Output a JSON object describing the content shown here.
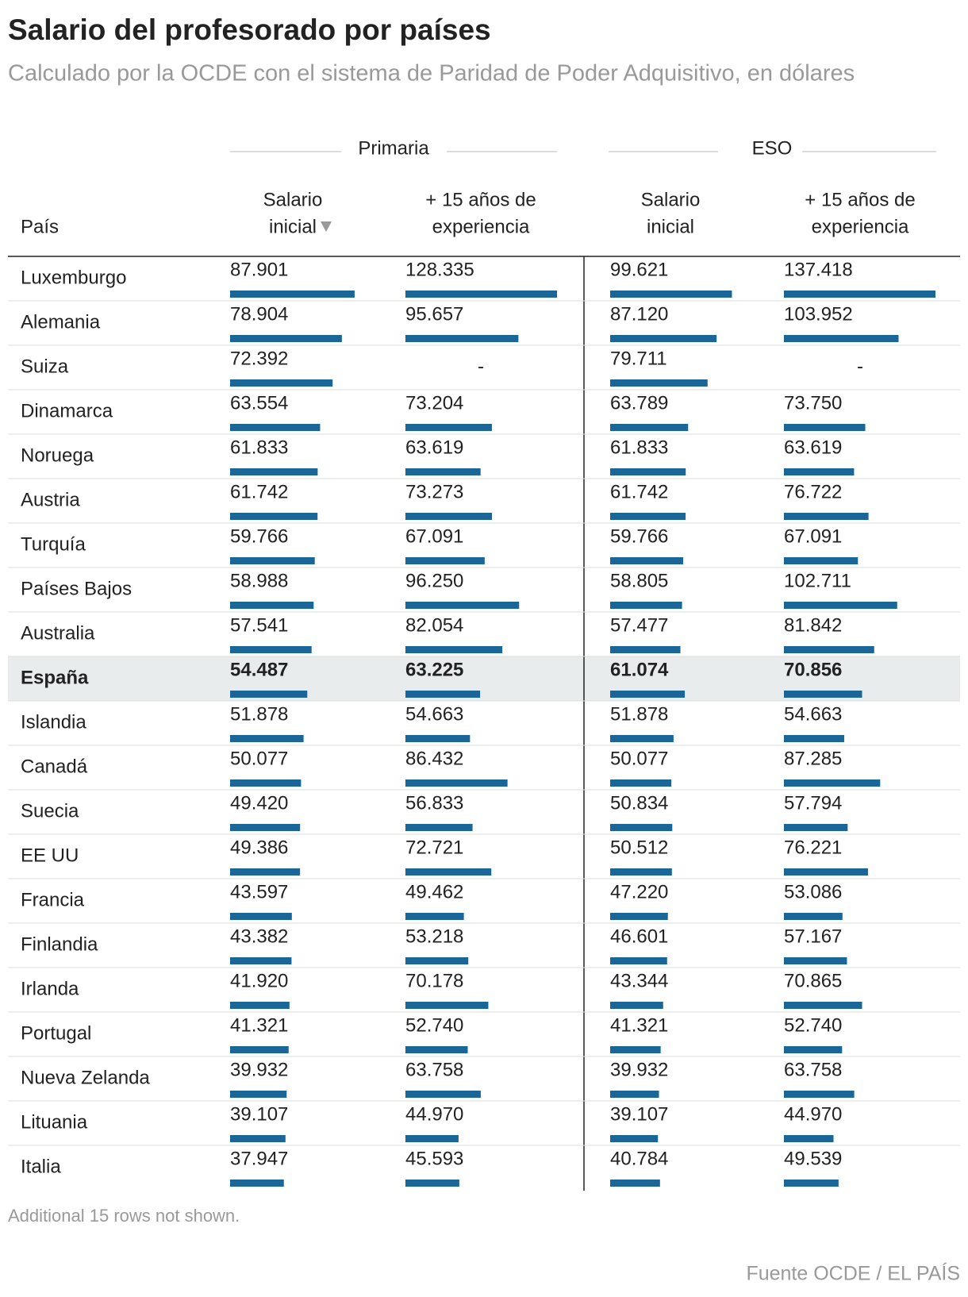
{
  "header": {
    "title": "Salario del profesorado por países",
    "subtitle": "Calculado por la OCDE con el sistema de Paridad de Poder Adquisitivo, en dólares"
  },
  "table": {
    "groups": [
      "Primaria",
      "ESO"
    ],
    "columns": [
      {
        "label": [
          "País"
        ]
      },
      {
        "label": [
          "Salario",
          "inicial"
        ],
        "xlim": [
          0,
          107000
        ]
      },
      {
        "label": [
          "+ 15 años de",
          "experiencia"
        ],
        "xlim": [
          0,
          128335
        ]
      },
      {
        "label": [
          "Salario",
          "inicial"
        ],
        "xlim": [
          0,
          124000
        ]
      },
      {
        "label": [
          "+ 15 años de",
          "experiencia"
        ],
        "xlim": [
          0,
          137418
        ]
      }
    ],
    "bar_color": "#1a6698",
    "rows": [
      {
        "country": "Luxemburgo",
        "values": [
          87901,
          128335,
          99621,
          137418
        ],
        "value_labels": [
          "87.901",
          "128.335",
          "99.621",
          "137.418"
        ]
      },
      {
        "country": "Alemania",
        "values": [
          78904,
          95657,
          87120,
          103952
        ],
        "value_labels": [
          "78.904",
          "95.657",
          "87.120",
          "103.952"
        ]
      },
      {
        "country": "Suiza",
        "values": [
          72392,
          null,
          79711,
          null
        ],
        "value_labels": [
          "72.392",
          "-",
          "79.711",
          "-"
        ]
      },
      {
        "country": "Dinamarca",
        "values": [
          63554,
          73204,
          63789,
          73750
        ],
        "value_labels": [
          "63.554",
          "73.204",
          "63.789",
          "73.750"
        ]
      },
      {
        "country": "Noruega",
        "values": [
          61833,
          63619,
          61833,
          63619
        ],
        "value_labels": [
          "61.833",
          "63.619",
          "61.833",
          "63.619"
        ]
      },
      {
        "country": "Austria",
        "values": [
          61742,
          73273,
          61742,
          76722
        ],
        "value_labels": [
          "61.742",
          "73.273",
          "61.742",
          "76.722"
        ]
      },
      {
        "country": "Turquía",
        "values": [
          59766,
          67091,
          59766,
          67091
        ],
        "value_labels": [
          "59.766",
          "67.091",
          "59.766",
          "67.091"
        ]
      },
      {
        "country": "Países Bajos",
        "values": [
          58988,
          96250,
          58805,
          102711
        ],
        "value_labels": [
          "58.988",
          "96.250",
          "58.805",
          "102.711"
        ]
      },
      {
        "country": "Australia",
        "values": [
          57541,
          82054,
          57477,
          81842
        ],
        "value_labels": [
          "57.541",
          "82.054",
          "57.477",
          "81.842"
        ]
      },
      {
        "country": "España",
        "highlight": true,
        "values": [
          54487,
          63225,
          61074,
          70856
        ],
        "value_labels": [
          "54.487",
          "63.225",
          "61.074",
          "70.856"
        ]
      },
      {
        "country": "Islandia",
        "values": [
          51878,
          54663,
          51878,
          54663
        ],
        "value_labels": [
          "51.878",
          "54.663",
          "51.878",
          "54.663"
        ]
      },
      {
        "country": "Canadá",
        "values": [
          50077,
          86432,
          50077,
          87285
        ],
        "value_labels": [
          "50.077",
          "86.432",
          "50.077",
          "87.285"
        ]
      },
      {
        "country": "Suecia",
        "values": [
          49420,
          56833,
          50834,
          57794
        ],
        "value_labels": [
          "49.420",
          "56.833",
          "50.834",
          "57.794"
        ]
      },
      {
        "country": "EE UU",
        "values": [
          49386,
          72721,
          50512,
          76221
        ],
        "value_labels": [
          "49.386",
          "72.721",
          "50.512",
          "76.221"
        ]
      },
      {
        "country": "Francia",
        "values": [
          43597,
          49462,
          47220,
          53086
        ],
        "value_labels": [
          "43.597",
          "49.462",
          "47.220",
          "53.086"
        ]
      },
      {
        "country": "Finlandia",
        "values": [
          43382,
          53218,
          46601,
          57167
        ],
        "value_labels": [
          "43.382",
          "53.218",
          "46.601",
          "57.167"
        ]
      },
      {
        "country": "Irlanda",
        "values": [
          41920,
          70178,
          43344,
          70865
        ],
        "value_labels": [
          "41.920",
          "70.178",
          "43.344",
          "70.865"
        ]
      },
      {
        "country": "Portugal",
        "values": [
          41321,
          52740,
          41321,
          52740
        ],
        "value_labels": [
          "41.321",
          "52.740",
          "41.321",
          "52.740"
        ]
      },
      {
        "country": "Nueva Zelanda",
        "values": [
          39932,
          63758,
          39932,
          63758
        ],
        "value_labels": [
          "39.932",
          "63.758",
          "39.932",
          "63.758"
        ]
      },
      {
        "country": "Lituania",
        "values": [
          39107,
          44970,
          39107,
          44970
        ],
        "value_labels": [
          "39.107",
          "44.970",
          "39.107",
          "44.970"
        ]
      },
      {
        "country": "Italia",
        "values": [
          37947,
          45593,
          40784,
          49539
        ],
        "value_labels": [
          "37.947",
          "45.593",
          "40.784",
          "49.539"
        ]
      }
    ]
  },
  "footer": {
    "note": "Additional 15 rows not shown.",
    "source": "Fuente OCDE / EL PAÍS"
  }
}
